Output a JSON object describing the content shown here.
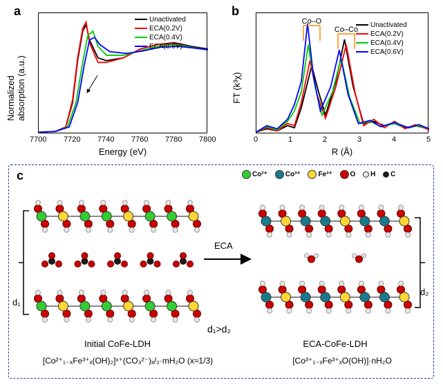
{
  "panel_a": {
    "label": "a",
    "type": "line",
    "xlabel": "Energy (eV)",
    "ylabel": "Normalized absorption (a.u.)",
    "xlim": [
      7700,
      7800
    ],
    "xticks": [
      7700,
      7720,
      7740,
      7760,
      7780,
      7800
    ],
    "series": [
      {
        "name": "Unactivated",
        "color": "#000000",
        "data": [
          [
            7700,
            0.02
          ],
          [
            7710,
            0.03
          ],
          [
            7716,
            0.08
          ],
          [
            7720,
            0.35
          ],
          [
            7723,
            0.82
          ],
          [
            7726,
            1.15
          ],
          [
            7728,
            1.22
          ],
          [
            7730,
            1.05
          ],
          [
            7735,
            0.85
          ],
          [
            7740,
            0.82
          ],
          [
            7750,
            0.85
          ],
          [
            7760,
            0.95
          ],
          [
            7770,
            1.0
          ],
          [
            7780,
            1.02
          ],
          [
            7790,
            0.98
          ],
          [
            7800,
            0.95
          ]
        ]
      },
      {
        "name": "ECA(0.2V)",
        "color": "#ff0000",
        "data": [
          [
            7700,
            0.02
          ],
          [
            7710,
            0.03
          ],
          [
            7716,
            0.08
          ],
          [
            7720,
            0.38
          ],
          [
            7723,
            0.85
          ],
          [
            7726,
            1.18
          ],
          [
            7728,
            1.25
          ],
          [
            7730,
            1.02
          ],
          [
            7735,
            0.8
          ],
          [
            7740,
            0.8
          ],
          [
            7750,
            0.85
          ],
          [
            7760,
            0.95
          ],
          [
            7770,
            1.0
          ],
          [
            7780,
            1.01
          ],
          [
            7790,
            0.97
          ],
          [
            7800,
            0.94
          ]
        ]
      },
      {
        "name": "ECA(0.4V)",
        "color": "#00cc00",
        "data": [
          [
            7700,
            0.02
          ],
          [
            7710,
            0.03
          ],
          [
            7717,
            0.08
          ],
          [
            7722,
            0.35
          ],
          [
            7726,
            0.8
          ],
          [
            7729,
            1.1
          ],
          [
            7732,
            1.15
          ],
          [
            7735,
            0.98
          ],
          [
            7740,
            0.88
          ],
          [
            7750,
            0.88
          ],
          [
            7760,
            0.93
          ],
          [
            7770,
            0.98
          ],
          [
            7780,
            1.0
          ],
          [
            7790,
            0.97
          ],
          [
            7800,
            0.94
          ]
        ]
      },
      {
        "name": "ECA(0.6V)",
        "color": "#0000ff",
        "data": [
          [
            7700,
            0.02
          ],
          [
            7710,
            0.03
          ],
          [
            7718,
            0.08
          ],
          [
            7723,
            0.35
          ],
          [
            7727,
            0.78
          ],
          [
            7730,
            1.05
          ],
          [
            7733,
            1.08
          ],
          [
            7736,
            1.0
          ],
          [
            7742,
            0.92
          ],
          [
            7752,
            0.9
          ],
          [
            7762,
            0.93
          ],
          [
            7772,
            0.97
          ],
          [
            7782,
            0.98
          ],
          [
            7792,
            0.96
          ],
          [
            7800,
            0.94
          ]
        ]
      }
    ],
    "ymax": 1.35
  },
  "panel_b": {
    "label": "b",
    "type": "line",
    "xlabel": "R (Å)",
    "ylabel": "FT (k³χ)",
    "xlim": [
      0,
      5
    ],
    "xticks": [
      0,
      1,
      2,
      3,
      4,
      5
    ],
    "annotations": [
      {
        "text": "Co–O",
        "x": 1.6
      },
      {
        "text": "Co–Co",
        "x": 2.6
      }
    ],
    "series": [
      {
        "name": "Unactivated",
        "color": "#000000",
        "data": [
          [
            0,
            0.02
          ],
          [
            0.3,
            0.05
          ],
          [
            0.6,
            0.03
          ],
          [
            0.9,
            0.08
          ],
          [
            1.1,
            0.06
          ],
          [
            1.3,
            0.25
          ],
          [
            1.6,
            0.65
          ],
          [
            1.8,
            0.4
          ],
          [
            2.0,
            0.18
          ],
          [
            2.3,
            0.5
          ],
          [
            2.55,
            0.9
          ],
          [
            2.8,
            0.45
          ],
          [
            3.1,
            0.1
          ],
          [
            3.4,
            0.12
          ],
          [
            3.7,
            0.08
          ],
          [
            4.0,
            0.1
          ],
          [
            4.3,
            0.06
          ],
          [
            4.6,
            0.08
          ],
          [
            5.0,
            0.05
          ]
        ]
      },
      {
        "name": "ECA(0.2V)",
        "color": "#ff0000",
        "data": [
          [
            0,
            0.02
          ],
          [
            0.3,
            0.06
          ],
          [
            0.6,
            0.03
          ],
          [
            0.9,
            0.1
          ],
          [
            1.1,
            0.08
          ],
          [
            1.3,
            0.3
          ],
          [
            1.55,
            0.7
          ],
          [
            1.75,
            0.38
          ],
          [
            2.0,
            0.15
          ],
          [
            2.3,
            0.45
          ],
          [
            2.6,
            0.85
          ],
          [
            2.85,
            0.4
          ],
          [
            3.1,
            0.08
          ],
          [
            3.4,
            0.14
          ],
          [
            3.7,
            0.06
          ],
          [
            4.0,
            0.12
          ],
          [
            4.3,
            0.05
          ],
          [
            4.6,
            0.09
          ],
          [
            5.0,
            0.04
          ]
        ]
      },
      {
        "name": "ECA(0.4V)",
        "color": "#00cc00",
        "data": [
          [
            0,
            0.02
          ],
          [
            0.3,
            0.07
          ],
          [
            0.6,
            0.04
          ],
          [
            0.9,
            0.12
          ],
          [
            1.1,
            0.22
          ],
          [
            1.3,
            0.4
          ],
          [
            1.5,
            0.85
          ],
          [
            1.7,
            0.45
          ],
          [
            1.9,
            0.18
          ],
          [
            2.2,
            0.4
          ],
          [
            2.45,
            0.72
          ],
          [
            2.7,
            0.35
          ],
          [
            3.0,
            0.1
          ],
          [
            3.3,
            0.12
          ],
          [
            3.6,
            0.07
          ],
          [
            4.0,
            0.1
          ],
          [
            4.4,
            0.06
          ],
          [
            4.7,
            0.08
          ],
          [
            5.0,
            0.05
          ]
        ]
      },
      {
        "name": "ECA(0.6V)",
        "color": "#0000ff",
        "data": [
          [
            0,
            0.02
          ],
          [
            0.3,
            0.08
          ],
          [
            0.6,
            0.05
          ],
          [
            0.9,
            0.14
          ],
          [
            1.1,
            0.28
          ],
          [
            1.3,
            0.5
          ],
          [
            1.48,
            1.05
          ],
          [
            1.65,
            0.55
          ],
          [
            1.85,
            0.22
          ],
          [
            2.15,
            0.45
          ],
          [
            2.4,
            0.8
          ],
          [
            2.65,
            0.38
          ],
          [
            2.95,
            0.1
          ],
          [
            3.3,
            0.13
          ],
          [
            3.6,
            0.07
          ],
          [
            4.0,
            0.11
          ],
          [
            4.4,
            0.06
          ],
          [
            4.7,
            0.09
          ],
          [
            5.0,
            0.05
          ]
        ]
      }
    ],
    "ymax": 1.15
  },
  "panel_c": {
    "label": "c",
    "ions": [
      {
        "name": "Co²⁺",
        "color": "#33cc33"
      },
      {
        "name": "Co³⁺",
        "color": "#1a7a8c"
      },
      {
        "name": "Fe³⁺",
        "color": "#ffd633"
      },
      {
        "name": "O",
        "color": "#cc0000"
      },
      {
        "name": "H",
        "color": "#e6e6e6"
      },
      {
        "name": "C",
        "color": "#1a1a1a"
      }
    ],
    "left_title": "Initial CoFe-LDH",
    "right_title": "ECA-CoFe-LDH",
    "left_formula": "[Co²⁺₁₋ₓFe³⁺ₓ(OH)₂]ˣ⁺(CO₃²⁻)ₓ/₂·mH₂O (x≈1/3)",
    "right_formula": "[Co³⁺₁₋ₓFe³⁺ₓO(OH)]·nH₂O",
    "center_text": "ECA",
    "inequality": "d₁>d₂",
    "d1": "d₁",
    "d2": "d₂"
  }
}
